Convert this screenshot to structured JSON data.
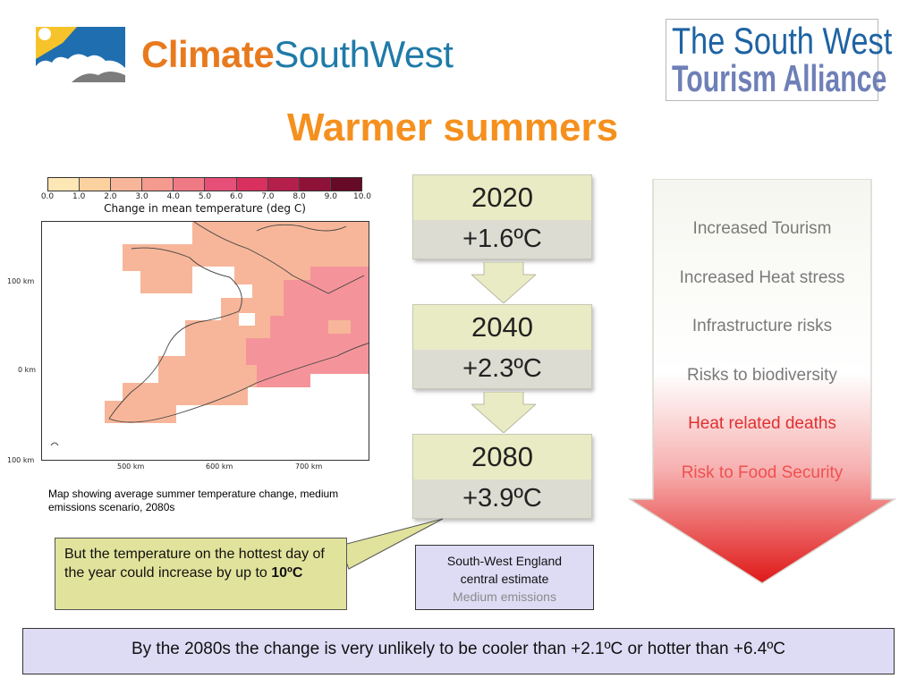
{
  "header": {
    "logo_left": {
      "word1": "Climate",
      "word2": "SouthWest"
    },
    "logo_right": {
      "line1": "The South West",
      "line2": "Tourism Alliance"
    },
    "title": "Warmer summers"
  },
  "map": {
    "colorbar_colors": [
      "#fffbe0",
      "#fde7b5",
      "#fbd1a0",
      "#f7b69a",
      "#f49a8e",
      "#ef7a86",
      "#e64f77",
      "#d8305f",
      "#b41f4b",
      "#8e1238",
      "#660a27"
    ],
    "colorbar_ticks": [
      "0.0",
      "1.0",
      "2.0",
      "3.0",
      "4.0",
      "5.0",
      "6.0",
      "7.0",
      "8.0",
      "9.0",
      "10.0"
    ],
    "colorbar_label": "Change in mean temperature (deg C)",
    "y_ticks": [
      "100 km",
      "0 km",
      "100 km"
    ],
    "x_ticks": [
      "500 km",
      "600 km",
      "700 km"
    ],
    "caption": "Map showing average summer temperature change, medium emissions scenario, 2080s"
  },
  "projections": [
    {
      "year": "2020",
      "value": "+1.6ºC"
    },
    {
      "year": "2040",
      "value": "+2.3ºC"
    },
    {
      "year": "2080",
      "value": "+3.9ºC"
    }
  ],
  "callout": {
    "text": "But the temperature on the hottest day of the year could increase by up to ",
    "bold": "10ºC"
  },
  "estimate": {
    "line1": "South-West England",
    "line2": "central estimate",
    "line3": "Medium emissions"
  },
  "impacts": [
    "Increased Tourism",
    "Increased Heat stress",
    "Infrastructure risks",
    "Risks to biodiversity",
    "Heat related deaths",
    "Risk to Food Security"
  ],
  "impact_colors": [
    "#7a7a7a",
    "#7a7a7a",
    "#7a7a7a",
    "#7a7a7a",
    "#e03030",
    "#f05050"
  ],
  "footer": "By the 2080s the change is very unlikely to be cooler than +2.1ºC or hotter than +6.4ºC"
}
